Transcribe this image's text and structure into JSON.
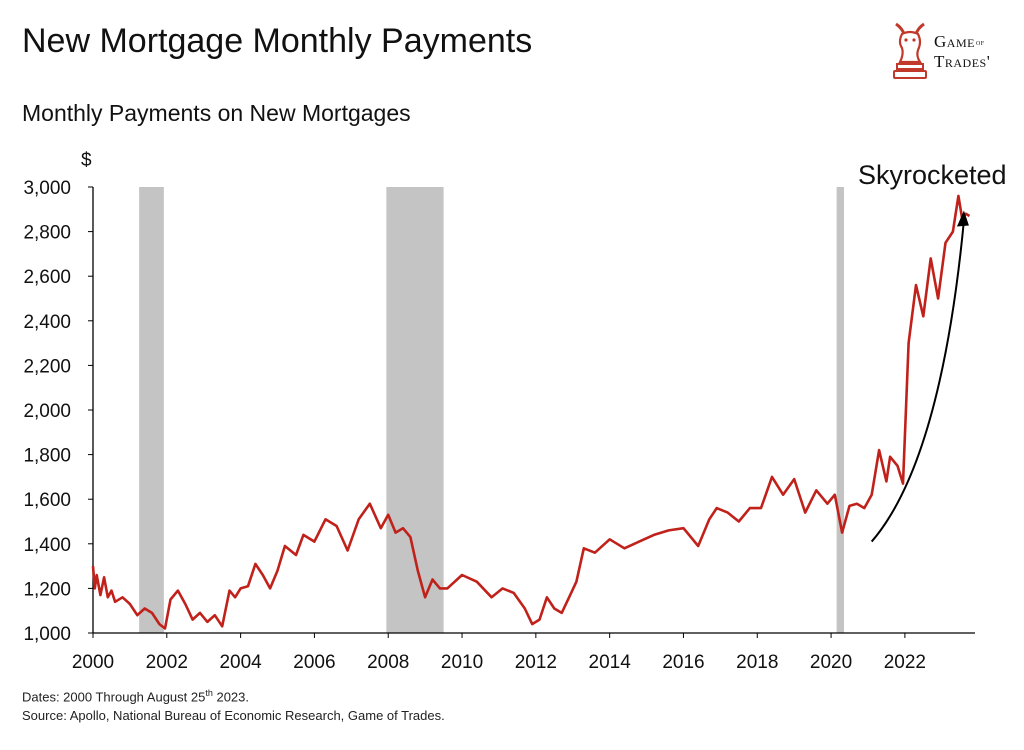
{
  "header": {
    "title": "New Mortgage Monthly Payments",
    "subtitle": "Monthly Payments on New Mortgages"
  },
  "logo": {
    "line1": "Game",
    "line1_small": "of",
    "line2": "Trades'",
    "icon": "bull-knight-chess-icon",
    "color": "#c0392b"
  },
  "footer": {
    "dates_prefix": "Dates: 2000 Through August 25",
    "dates_sup": "th",
    "dates_suffix": " 2023.",
    "source": "Source: Apollo, National Bureau of Economic Research, Game of Trades."
  },
  "chart_data": {
    "type": "line",
    "ylabel": "$",
    "ylim": [
      1000,
      3000
    ],
    "xlim": [
      2000,
      2023.9
    ],
    "y_ticks": [
      1000,
      1200,
      1400,
      1600,
      1800,
      2000,
      2200,
      2400,
      2600,
      2800,
      3000
    ],
    "y_tick_labels": [
      "1,000",
      "1,200",
      "1,400",
      "1,600",
      "1,800",
      "2,000",
      "2,200",
      "2,400",
      "2,600",
      "2,800",
      "3,000"
    ],
    "x_ticks": [
      2000,
      2002,
      2004,
      2006,
      2008,
      2010,
      2012,
      2014,
      2016,
      2018,
      2020,
      2022
    ],
    "x_tick_labels": [
      "2000",
      "2002",
      "2004",
      "2006",
      "2008",
      "2010",
      "2012",
      "2014",
      "2016",
      "2018",
      "2020",
      "2022"
    ],
    "line_color": "#c0221b",
    "recession_color": "#c4c4c4",
    "recessions": [
      [
        2001.25,
        2001.92
      ],
      [
        2007.95,
        2009.5
      ],
      [
        2020.15,
        2020.35
      ]
    ],
    "annotation": {
      "text": "Skyrocketed",
      "arrow_from": [
        2021.1,
        1410
      ],
      "arrow_to": [
        2023.6,
        2850
      ]
    },
    "series": [
      {
        "x": [
          2000.0,
          2000.05,
          2000.1,
          2000.2,
          2000.3,
          2000.4,
          2000.5,
          2000.6,
          2000.8,
          2001.0,
          2001.2,
          2001.4,
          2001.6,
          2001.8,
          2001.95,
          2002.1,
          2002.3,
          2002.5,
          2002.7,
          2002.9,
          2003.1,
          2003.3,
          2003.5,
          2003.7,
          2003.85,
          2004.0,
          2004.2,
          2004.4,
          2004.6,
          2004.8,
          2005.0,
          2005.2,
          2005.5,
          2005.7,
          2006.0,
          2006.3,
          2006.6,
          2006.9,
          2007.2,
          2007.5,
          2007.8,
          2008.0,
          2008.2,
          2008.4,
          2008.6,
          2008.8,
          2009.0,
          2009.2,
          2009.4,
          2009.6,
          2010.0,
          2010.4,
          2010.8,
          2011.1,
          2011.4,
          2011.7,
          2011.9,
          2012.1,
          2012.3,
          2012.5,
          2012.7,
          2012.9,
          2013.1,
          2013.3,
          2013.6,
          2014.0,
          2014.4,
          2014.8,
          2015.2,
          2015.6,
          2016.0,
          2016.4,
          2016.7,
          2016.9,
          2017.2,
          2017.5,
          2017.8,
          2018.1,
          2018.4,
          2018.7,
          2019.0,
          2019.3,
          2019.6,
          2019.9,
          2020.1,
          2020.3,
          2020.5,
          2020.7,
          2020.9,
          2021.1,
          2021.3,
          2021.5,
          2021.6,
          2021.8,
          2021.95,
          2022.1,
          2022.3,
          2022.5,
          2022.7,
          2022.9,
          2023.1,
          2023.3,
          2023.45,
          2023.55,
          2023.65,
          2023.75
        ],
        "y": [
          1300,
          1200,
          1260,
          1170,
          1250,
          1160,
          1190,
          1140,
          1160,
          1130,
          1080,
          1110,
          1090,
          1040,
          1020,
          1150,
          1190,
          1130,
          1060,
          1090,
          1050,
          1080,
          1030,
          1190,
          1160,
          1200,
          1210,
          1310,
          1260,
          1200,
          1280,
          1390,
          1350,
          1440,
          1410,
          1510,
          1480,
          1370,
          1510,
          1580,
          1470,
          1530,
          1450,
          1470,
          1430,
          1280,
          1160,
          1240,
          1200,
          1200,
          1260,
          1230,
          1160,
          1200,
          1180,
          1110,
          1040,
          1060,
          1160,
          1110,
          1090,
          1160,
          1230,
          1380,
          1360,
          1420,
          1380,
          1410,
          1440,
          1460,
          1470,
          1390,
          1510,
          1560,
          1540,
          1500,
          1560,
          1560,
          1700,
          1620,
          1690,
          1540,
          1640,
          1580,
          1620,
          1450,
          1570,
          1580,
          1560,
          1620,
          1820,
          1680,
          1790,
          1750,
          1670,
          2300,
          2560,
          2420,
          2680,
          2500,
          2750,
          2800,
          2960,
          2860,
          2880,
          2870
        ]
      }
    ]
  }
}
